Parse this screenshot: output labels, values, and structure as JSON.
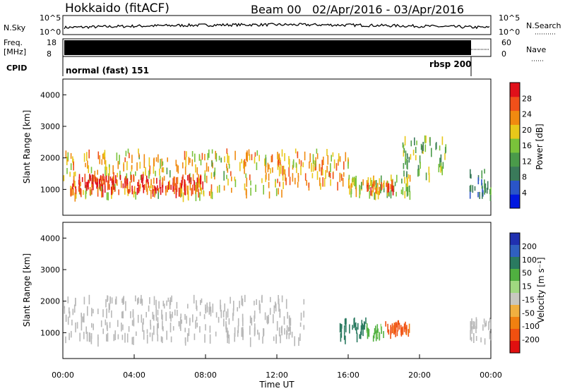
{
  "header": {
    "station": "Hokkaido (fitACF)",
    "beam": "Beam 00",
    "date_range": "02/Apr/2016 - 03/Apr/2016"
  },
  "top_panels": {
    "nsky_label": "N.Sky",
    "nsky_ticks": [
      "10^5",
      "10^0"
    ],
    "nsky_right_ticks": [
      "10^5",
      "10^0"
    ],
    "nsearch_label": "N.Search",
    "freq_label": "Freq.",
    "freq_unit": "[MHz]",
    "freq_ticks": [
      "18",
      "8"
    ],
    "nave_ticks": [
      "60",
      "0"
    ],
    "nave_label": "Nave",
    "cpid_label": "CPID",
    "cpid_modes": [
      "normal (fast) 151",
      "rbsp 200"
    ]
  },
  "colors": {
    "power_scale": [
      "#0018e0",
      "#2a55c8",
      "#3a7a5a",
      "#4a9a4a",
      "#7ac33a",
      "#e8c81a",
      "#f08a10",
      "#f0501a",
      "#e0101a"
    ],
    "velocity_scale": [
      "#2030b0",
      "#3060c0",
      "#2a7a60",
      "#50b040",
      "#a0d880",
      "#c8c8c0",
      "#f0b040",
      "#f08010",
      "#f05010",
      "#e01010"
    ],
    "ground_scatter": "#b8b8b8"
  },
  "chart_data": [
    {
      "type": "heatmap",
      "name_hint": "power",
      "ylabel": "Slant Range [km]",
      "yticks": [
        1000,
        2000,
        3000,
        4000
      ],
      "ylim": [
        180,
        4500
      ],
      "colorbar_label": "Power [dB]",
      "colorbar_ticks": [
        4,
        8,
        12,
        16,
        20,
        24,
        28
      ],
      "colorbar_range": [
        0,
        32
      ],
      "bands": [
        {
          "t0": 0.0,
          "t1": 12.5,
          "r0": 900,
          "r1": 2300,
          "level": 20
        },
        {
          "t0": 0.3,
          "t1": 8.0,
          "r0": 1000,
          "r1": 1500,
          "level": 28
        },
        {
          "t0": 11.5,
          "t1": 16.0,
          "r0": 1200,
          "r1": 2300,
          "level": 22
        },
        {
          "t0": 16.0,
          "t1": 19.5,
          "r0": 900,
          "r1": 1500,
          "level": 18
        },
        {
          "t0": 17.0,
          "t1": 18.5,
          "r0": 1050,
          "r1": 1300,
          "level": 26
        },
        {
          "t0": 19.0,
          "t1": 21.5,
          "r0": 1500,
          "r1": 2800,
          "level": 15
        },
        {
          "t0": 22.8,
          "t1": 24.0,
          "r0": 900,
          "r1": 1700,
          "level": 10
        }
      ]
    },
    {
      "type": "heatmap",
      "name_hint": "velocity",
      "ylabel": "Slant Range [km]",
      "xlabel": "Time UT",
      "xticks": [
        "00:00",
        "04:00",
        "08:00",
        "12:00",
        "16:00",
        "20:00",
        "00:00"
      ],
      "xlim": [
        0,
        24
      ],
      "yticks": [
        1000,
        2000,
        3000,
        4000
      ],
      "ylim": [
        180,
        4500
      ],
      "colorbar_label": "Velocity [m s⁻¹]",
      "colorbar_ticks": [
        200,
        100,
        50,
        15,
        -15,
        -50,
        -100,
        -200
      ],
      "bands": [
        {
          "t0": 0.0,
          "t1": 13.5,
          "r0": 850,
          "r1": 2200,
          "vel": 0,
          "ground": true
        },
        {
          "t0": 15.5,
          "t1": 17.0,
          "r0": 900,
          "r1": 1500,
          "vel": 60
        },
        {
          "t0": 17.0,
          "t1": 18.0,
          "r0": 900,
          "r1": 1300,
          "vel": 20
        },
        {
          "t0": 18.0,
          "t1": 19.5,
          "r0": 1050,
          "r1": 1400,
          "vel": -80
        },
        {
          "t0": 22.8,
          "t1": 24.0,
          "r0": 800,
          "r1": 1500,
          "vel": 0,
          "ground": true
        }
      ]
    }
  ]
}
